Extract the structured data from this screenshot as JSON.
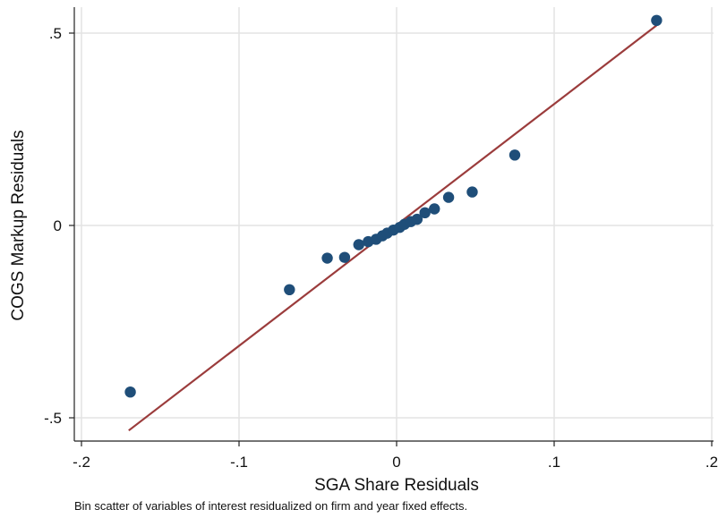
{
  "chart_data": {
    "type": "scatter",
    "xlabel": "SGA Share Residuals",
    "ylabel": "COGS Markup Residuals",
    "xlim": [
      -0.2,
      0.2
    ],
    "ylim": [
      -0.5,
      0.5
    ],
    "x_ticks": [
      {
        "value": -0.2,
        "label": "-.2"
      },
      {
        "value": -0.1,
        "label": "-.1"
      },
      {
        "value": 0,
        "label": "0"
      },
      {
        "value": 0.1,
        "label": ".1"
      },
      {
        "value": 0.2,
        "label": ".2"
      }
    ],
    "y_ticks": [
      {
        "value": 0.5,
        "label": ".5"
      },
      {
        "value": 0,
        "label": "0"
      },
      {
        "value": -0.5,
        "label": "-.5"
      }
    ],
    "grid": true,
    "points": [
      {
        "x": -0.169,
        "y": -0.433
      },
      {
        "x": -0.068,
        "y": -0.167
      },
      {
        "x": -0.044,
        "y": -0.085
      },
      {
        "x": -0.033,
        "y": -0.083
      },
      {
        "x": -0.024,
        "y": -0.05
      },
      {
        "x": -0.018,
        "y": -0.042
      },
      {
        "x": -0.013,
        "y": -0.036
      },
      {
        "x": -0.009,
        "y": -0.027
      },
      {
        "x": -0.006,
        "y": -0.02
      },
      {
        "x": -0.002,
        "y": -0.012
      },
      {
        "x": 0.002,
        "y": -0.005
      },
      {
        "x": 0.005,
        "y": 0.003
      },
      {
        "x": 0.009,
        "y": 0.01
      },
      {
        "x": 0.013,
        "y": 0.016
      },
      {
        "x": 0.018,
        "y": 0.033
      },
      {
        "x": 0.024,
        "y": 0.043
      },
      {
        "x": 0.033,
        "y": 0.073
      },
      {
        "x": 0.048,
        "y": 0.087
      },
      {
        "x": 0.075,
        "y": 0.183
      },
      {
        "x": 0.165,
        "y": 0.533
      }
    ],
    "fit_line": {
      "x": [
        -0.17,
        0.165
      ],
      "y": [
        -0.533,
        0.52
      ]
    },
    "colors": {
      "points": "#1f4e79",
      "fit_line": "#9b3c3c",
      "grid": "#e3e3e3"
    }
  },
  "caption": "Bin scatter of variables of interest residualized on firm and year fixed effects."
}
